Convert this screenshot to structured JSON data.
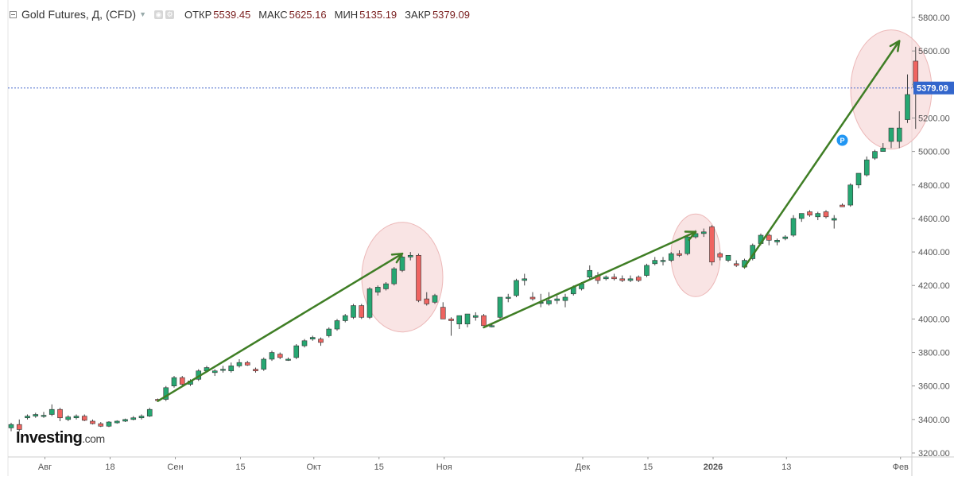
{
  "header": {
    "symbol_title": "Gold Futures, Д, (CFD)",
    "open_label": "ОТКР",
    "open_value": "5539.45",
    "high_label": "МАКС",
    "high_value": "5625.16",
    "low_label": "МИН",
    "low_value": "5135.19",
    "close_label": "ЗАКР",
    "close_value": "5379.09"
  },
  "logo": {
    "main": "Investing",
    "suffix": ".com"
  },
  "colors": {
    "up": "#26a772",
    "down": "#ef6461",
    "arrow": "#3f7e25",
    "ellipse_fill": "#f7d9d9",
    "ellipse_stroke": "#ecb8b8",
    "price_line": "#4466cc",
    "price_badge": "#3366cc"
  },
  "chart_data": {
    "type": "candlestick",
    "title": "Gold Futures, Д, (CFD)",
    "ylim": [
      3200,
      5900
    ],
    "y_ticks": [
      "3200.00",
      "3400.00",
      "3600.00",
      "3800.00",
      "4000.00",
      "4200.00",
      "4400.00",
      "4600.00",
      "4800.00",
      "5000.00",
      "5200.00",
      "5400.00",
      "5600.00",
      "5800.00"
    ],
    "x_tick_labels": [
      "Авг",
      "18",
      "Сен",
      "15",
      "Окт",
      "15",
      "Ноя",
      "Дек",
      "15",
      "2026",
      "13",
      "Фев"
    ],
    "last_price": "5379.09",
    "marker_label": "P",
    "candles": [
      [
        3350,
        3380,
        3330,
        3370
      ],
      [
        3370,
        3400,
        3330,
        3340
      ],
      [
        3410,
        3430,
        3400,
        3420
      ],
      [
        3420,
        3440,
        3410,
        3430
      ],
      [
        3420,
        3445,
        3410,
        3425
      ],
      [
        3430,
        3490,
        3420,
        3460
      ],
      [
        3460,
        3470,
        3390,
        3410
      ],
      [
        3400,
        3425,
        3390,
        3415
      ],
      [
        3410,
        3430,
        3400,
        3420
      ],
      [
        3420,
        3430,
        3390,
        3395
      ],
      [
        3390,
        3400,
        3370,
        3375
      ],
      [
        3375,
        3385,
        3355,
        3360
      ],
      [
        3360,
        3390,
        3355,
        3385
      ],
      [
        3380,
        3395,
        3375,
        3390
      ],
      [
        3390,
        3405,
        3385,
        3400
      ],
      [
        3400,
        3420,
        3395,
        3410
      ],
      [
        3410,
        3430,
        3400,
        3420
      ],
      [
        3420,
        3470,
        3415,
        3460
      ],
      [
        3520,
        3525,
        3510,
        3515
      ],
      [
        3520,
        3600,
        3510,
        3590
      ],
      [
        3600,
        3660,
        3590,
        3650
      ],
      [
        3650,
        3660,
        3600,
        3610
      ],
      [
        3610,
        3640,
        3600,
        3630
      ],
      [
        3640,
        3700,
        3630,
        3690
      ],
      [
        3690,
        3720,
        3680,
        3710
      ],
      [
        3680,
        3700,
        3660,
        3690
      ],
      [
        3700,
        3720,
        3680,
        3700
      ],
      [
        3690,
        3740,
        3680,
        3720
      ],
      [
        3720,
        3760,
        3710,
        3740
      ],
      [
        3740,
        3750,
        3720,
        3725
      ],
      [
        3700,
        3710,
        3680,
        3690
      ],
      [
        3700,
        3770,
        3690,
        3760
      ],
      [
        3760,
        3810,
        3750,
        3800
      ],
      [
        3790,
        3800,
        3760,
        3770
      ],
      [
        3760,
        3770,
        3750,
        3760
      ],
      [
        3770,
        3850,
        3760,
        3840
      ],
      [
        3840,
        3880,
        3830,
        3870
      ],
      [
        3880,
        3900,
        3870,
        3890
      ],
      [
        3880,
        3890,
        3840,
        3860
      ],
      [
        3900,
        3950,
        3890,
        3940
      ],
      [
        3940,
        4000,
        3930,
        3990
      ],
      [
        3990,
        4030,
        3980,
        4020
      ],
      [
        4010,
        4090,
        4000,
        4080
      ],
      [
        4080,
        4090,
        4000,
        4010
      ],
      [
        4010,
        4190,
        4000,
        4180
      ],
      [
        4160,
        4200,
        4140,
        4190
      ],
      [
        4180,
        4220,
        4170,
        4210
      ],
      [
        4210,
        4310,
        4200,
        4300
      ],
      [
        4290,
        4380,
        4280,
        4370
      ],
      [
        4370,
        4400,
        4350,
        4380
      ],
      [
        4380,
        4390,
        4100,
        4110
      ],
      [
        4120,
        4160,
        4080,
        4090
      ],
      [
        4100,
        4150,
        4090,
        4140
      ],
      [
        4070,
        4100,
        4000,
        4000
      ],
      [
        4000,
        4010,
        3900,
        3990
      ],
      [
        3970,
        4020,
        3940,
        4020
      ],
      [
        3970,
        4030,
        3950,
        4030
      ],
      [
        4010,
        4040,
        3990,
        4020
      ],
      [
        4020,
        4030,
        3960,
        3960
      ],
      [
        3960,
        3970,
        3950,
        3960
      ],
      [
        4010,
        4130,
        4000,
        4130
      ],
      [
        4130,
        4150,
        4100,
        4130
      ],
      [
        4140,
        4240,
        4130,
        4230
      ],
      [
        4230,
        4270,
        4200,
        4240
      ],
      [
        4130,
        4160,
        4110,
        4120
      ],
      [
        4100,
        4150,
        4070,
        4100
      ],
      [
        4090,
        4160,
        4080,
        4110
      ],
      [
        4110,
        4140,
        4090,
        4120
      ],
      [
        4110,
        4150,
        4070,
        4130
      ],
      [
        4150,
        4200,
        4140,
        4190
      ],
      [
        4180,
        4220,
        4170,
        4210
      ],
      [
        4250,
        4320,
        4230,
        4290
      ],
      [
        4260,
        4280,
        4210,
        4230
      ],
      [
        4240,
        4260,
        4230,
        4250
      ],
      [
        4250,
        4270,
        4230,
        4240
      ],
      [
        4240,
        4260,
        4220,
        4230
      ],
      [
        4230,
        4260,
        4220,
        4240
      ],
      [
        4250,
        4260,
        4220,
        4230
      ],
      [
        4260,
        4330,
        4250,
        4320
      ],
      [
        4330,
        4370,
        4320,
        4350
      ],
      [
        4350,
        4370,
        4320,
        4350
      ],
      [
        4350,
        4400,
        4340,
        4390
      ],
      [
        4390,
        4410,
        4370,
        4380
      ],
      [
        4390,
        4500,
        4380,
        4490
      ],
      [
        4490,
        4530,
        4480,
        4510
      ],
      [
        4510,
        4540,
        4490,
        4520
      ],
      [
        4550,
        4560,
        4320,
        4340
      ],
      [
        4390,
        4400,
        4350,
        4370
      ],
      [
        4350,
        4380,
        4340,
        4380
      ],
      [
        4330,
        4350,
        4310,
        4320
      ],
      [
        4310,
        4360,
        4300,
        4350
      ],
      [
        4360,
        4450,
        4350,
        4440
      ],
      [
        4450,
        4510,
        4440,
        4500
      ],
      [
        4500,
        4510,
        4440,
        4470
      ],
      [
        4460,
        4480,
        4440,
        4470
      ],
      [
        4480,
        4500,
        4470,
        4490
      ],
      [
        4500,
        4620,
        4490,
        4600
      ],
      [
        4600,
        4630,
        4580,
        4630
      ],
      [
        4640,
        4650,
        4610,
        4620
      ],
      [
        4610,
        4640,
        4590,
        4630
      ],
      [
        4640,
        4650,
        4600,
        4610
      ],
      [
        4590,
        4620,
        4540,
        4600
      ],
      [
        4680,
        4690,
        4670,
        4670
      ],
      [
        4680,
        4810,
        4670,
        4800
      ],
      [
        4800,
        4870,
        4780,
        4870
      ],
      [
        4860,
        4970,
        4850,
        4950
      ],
      [
        4960,
        5010,
        4950,
        5000
      ],
      [
        5000,
        5050,
        5000,
        5020
      ],
      [
        5060,
        5140,
        5020,
        5140
      ],
      [
        5060,
        5240,
        5020,
        5140
      ],
      [
        5190,
        5460,
        5170,
        5340
      ],
      [
        5539.45,
        5625.16,
        5135.19,
        5379.09
      ]
    ],
    "trend_arrows": [
      {
        "from": [
          18,
          3510
        ],
        "to": [
          48,
          4390
        ]
      },
      {
        "from": [
          58,
          3950
        ],
        "to": [
          84,
          4520
        ]
      },
      {
        "from": [
          90,
          4310
        ],
        "to": [
          109,
          5660
        ]
      }
    ],
    "highlight_circles": [
      {
        "center": [
          48,
          4250
        ]
      },
      {
        "center": [
          84,
          4380
        ]
      },
      {
        "center": [
          108,
          5370
        ]
      }
    ],
    "marker": {
      "candle": 102,
      "price": 5010
    },
    "grid": false,
    "legend": "none"
  }
}
